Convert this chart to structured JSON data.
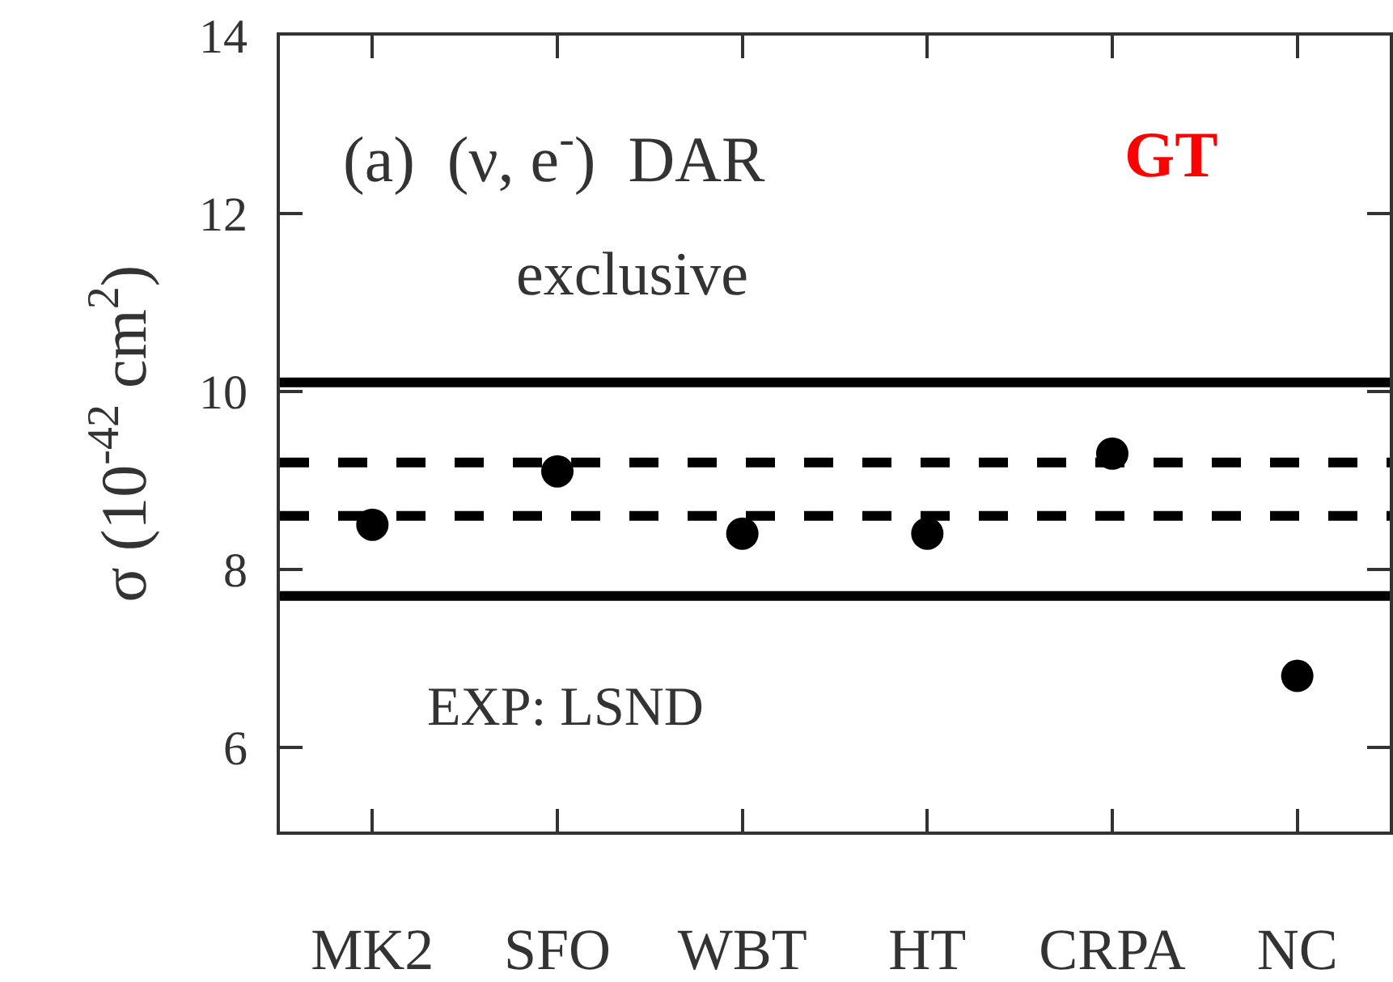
{
  "chart_data": {
    "type": "scatter",
    "ylabel": "σ (10$^{-42}$ cm$^{2}$)",
    "categories": [
      "MK2",
      "SFO",
      "WBT",
      "HT",
      "CRPA",
      "NC"
    ],
    "series": [
      {
        "color": "#000000",
        "values": [
          8.5,
          9.1,
          8.4,
          8.4,
          9.3,
          6.8
        ]
      }
    ],
    "ylim": [
      5.05,
      14
    ],
    "yticks": [
      6,
      8,
      10,
      12,
      14
    ],
    "ref_lines": [
      {
        "axis": "y",
        "value": 10.1,
        "line_style": "solid",
        "color": "#000000"
      },
      {
        "axis": "y",
        "value": 9.2,
        "line_style": "dashed",
        "color": "#000000"
      },
      {
        "axis": "y",
        "value": 8.6,
        "line_style": "dashed",
        "color": "#000000"
      },
      {
        "axis": "y",
        "value": 7.7,
        "line_style": "solid",
        "color": "#000000"
      }
    ],
    "annotations": [
      "(a)  (ν, e$^{-}$)  DAR",
      "GT",
      "exclusive",
      "EXP: LSND"
    ],
    "marker": "circle",
    "grid": false
  }
}
